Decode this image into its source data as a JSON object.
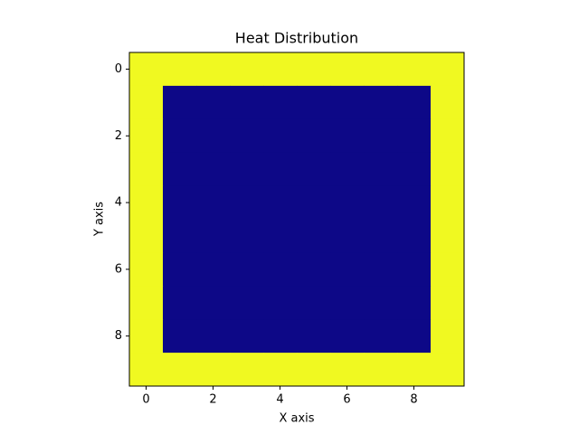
{
  "chart_data": {
    "type": "heatmap",
    "title": "Heat Distribution",
    "x_label": "X axis",
    "y_label": "Y axis",
    "values": [
      [
        1,
        1,
        1,
        1,
        1,
        1,
        1,
        1,
        1,
        1
      ],
      [
        1,
        0,
        0,
        0,
        0,
        0,
        0,
        0,
        0,
        1
      ],
      [
        1,
        0,
        0,
        0,
        0,
        0,
        0,
        0,
        0,
        1
      ],
      [
        1,
        0,
        0,
        0,
        0,
        0,
        0,
        0,
        0,
        1
      ],
      [
        1,
        0,
        0,
        0,
        0,
        0,
        0,
        0,
        0,
        1
      ],
      [
        1,
        0,
        0,
        0,
        0,
        0,
        0,
        0,
        0,
        1
      ],
      [
        1,
        0,
        0,
        0,
        0,
        0,
        0,
        0,
        0,
        1
      ],
      [
        1,
        0,
        0,
        0,
        0,
        0,
        0,
        0,
        0,
        1
      ],
      [
        1,
        0,
        0,
        0,
        0,
        0,
        0,
        0,
        0,
        1
      ],
      [
        1,
        1,
        1,
        1,
        1,
        1,
        1,
        1,
        1,
        1
      ]
    ],
    "colormap": {
      "low": "#0d0887",
      "high": "#f0f921"
    },
    "xlim": [
      -0.5,
      9.5
    ],
    "ylim": [
      9.5,
      -0.5
    ],
    "xticks": [
      0,
      2,
      4,
      6,
      8
    ],
    "yticks": [
      0,
      2,
      4,
      6,
      8
    ]
  }
}
